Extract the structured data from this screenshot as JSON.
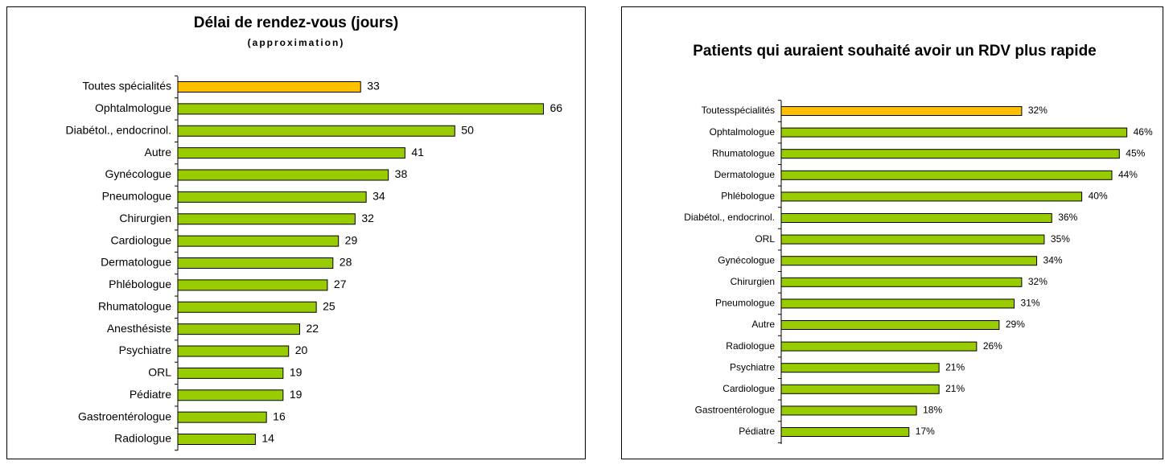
{
  "chart_data": [
    {
      "type": "bar",
      "orientation": "horizontal",
      "title": "Délai de rendez-vous (jours)",
      "subtitle": "(approximation)",
      "categories": [
        "Toutes spécialités",
        "Ophtalmologue",
        "Diabétol., endocrinol.",
        "Autre",
        "Gynécologue",
        "Pneumologue",
        "Chirurgien",
        "Cardiologue",
        "Dermatologue",
        "Phlébologue",
        "Rhumatologue",
        "Anesthésiste",
        "Psychiatre",
        "ORL",
        "Pédiatre",
        "Gastroentérologue",
        "Radiologue"
      ],
      "values": [
        33,
        66,
        50,
        41,
        38,
        34,
        32,
        29,
        28,
        27,
        25,
        22,
        20,
        19,
        19,
        16,
        14
      ],
      "colors": [
        "#ffc000",
        "#99cc00",
        "#99cc00",
        "#99cc00",
        "#99cc00",
        "#99cc00",
        "#99cc00",
        "#99cc00",
        "#99cc00",
        "#99cc00",
        "#99cc00",
        "#99cc00",
        "#99cc00",
        "#99cc00",
        "#99cc00",
        "#99cc00",
        "#99cc00"
      ],
      "xlim": [
        0,
        70
      ]
    },
    {
      "type": "bar",
      "orientation": "horizontal",
      "title": "Patients qui auraient souhaité avoir un RDV plus rapide",
      "categories": [
        "Toutesspécialités",
        "Ophtalmologue",
        "Rhumatologue",
        "Dermatologue",
        "Phlébologue",
        "Diabétol., endocrinol.",
        "ORL",
        "Gynécologue",
        "Chirurgien",
        "Pneumologue",
        "Autre",
        "Radiologue",
        "Psychiatre",
        "Cardiologue",
        "Gastroentérologue",
        "Pédiatre"
      ],
      "values": [
        32,
        46,
        45,
        44,
        40,
        36,
        35,
        34,
        32,
        31,
        29,
        26,
        21,
        21,
        18,
        17
      ],
      "value_labels": [
        "32%",
        "46%",
        "45%",
        "44%",
        "40%",
        "36%",
        "35%",
        "34%",
        "32%",
        "31%",
        "29%",
        "26%",
        "21%",
        "21%",
        "18%",
        "17%"
      ],
      "colors": [
        "#ffc000",
        "#99cc00",
        "#99cc00",
        "#99cc00",
        "#99cc00",
        "#99cc00",
        "#99cc00",
        "#99cc00",
        "#99cc00",
        "#99cc00",
        "#99cc00",
        "#99cc00",
        "#99cc00",
        "#99cc00",
        "#99cc00",
        "#99cc00"
      ],
      "xlim": [
        0,
        50
      ]
    }
  ]
}
